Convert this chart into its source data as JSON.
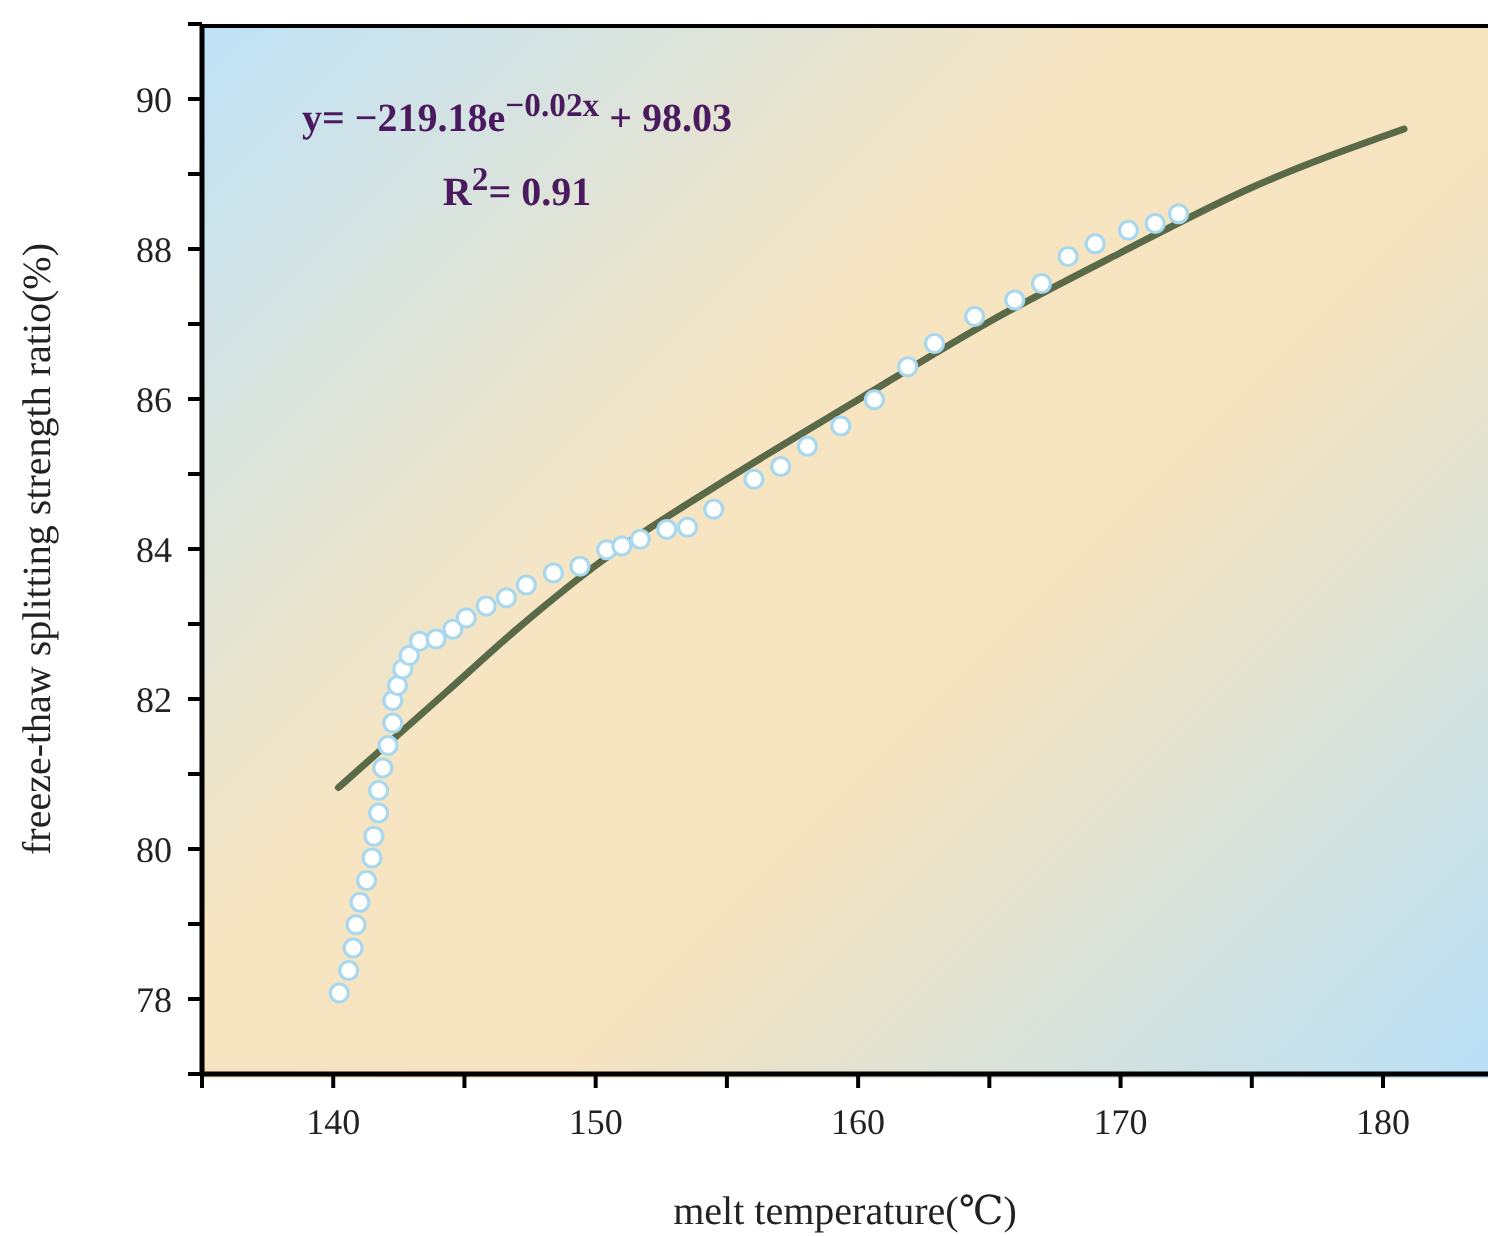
{
  "chart_data": {
    "type": "scatter",
    "xlabel": "melt temperature(℃)",
    "ylabel": "freeze-thaw splitting strength ratio(%)",
    "annotations": [
      "y= −219.18e$^{−0.02x}$ + 98.03",
      "R$^{2}$= 0.91"
    ],
    "xlim": [
      135,
      184
    ],
    "xticks": [
      {
        "value": 135,
        "label": null
      },
      140,
      {
        "value": 145,
        "label": null
      },
      150,
      {
        "value": 155,
        "label": null
      },
      160,
      {
        "value": 165,
        "label": null
      },
      170,
      {
        "value": 175,
        "label": null
      },
      180
    ],
    "ylim": [
      77,
      91
    ],
    "yticks": [
      {
        "value": 77,
        "label": null
      },
      78,
      {
        "value": 79,
        "label": null
      },
      80,
      {
        "value": 81,
        "label": null
      },
      82,
      {
        "value": 83,
        "label": null
      },
      84,
      {
        "value": 85,
        "label": null
      },
      86,
      {
        "value": 87,
        "label": null
      },
      88,
      {
        "value": 89,
        "label": null
      },
      90,
      {
        "value": 91,
        "label": null
      }
    ],
    "grid": false,
    "series": [
      {
        "color": "#a8d8f0",
        "marker": "circle",
        "x": [
          140.23,
          140.59,
          140.76,
          140.87,
          141.02,
          141.27,
          141.48,
          141.55,
          141.73,
          141.73,
          141.89,
          142.09,
          142.27,
          142.27,
          142.45,
          142.65,
          142.9,
          143.29,
          143.92,
          144.56,
          145.07,
          145.83,
          146.6,
          147.36,
          148.39,
          149.4,
          150.42,
          151.0,
          151.7,
          152.71,
          153.5,
          154.5,
          156.03,
          157.05,
          158.07,
          159.34,
          160.62,
          161.89,
          162.91,
          164.44,
          165.97,
          166.99,
          168.0,
          169.03,
          170.3,
          171.32,
          172.21
        ],
        "values": [
          78.08,
          78.38,
          78.68,
          78.99,
          79.29,
          79.58,
          79.88,
          80.17,
          80.48,
          80.78,
          81.08,
          81.38,
          81.68,
          81.98,
          82.18,
          82.4,
          82.58,
          82.77,
          82.8,
          82.93,
          83.08,
          83.24,
          83.35,
          83.52,
          83.68,
          83.77,
          83.99,
          84.04,
          84.13,
          84.26,
          84.29,
          84.53,
          84.93,
          85.1,
          85.37,
          85.64,
          85.99,
          86.43,
          86.74,
          87.1,
          87.32,
          87.54,
          87.9,
          88.07,
          88.25,
          88.34,
          88.47
        ]
      },
      {
        "type": "line",
        "color": "#5a6a48",
        "marker": "none",
        "line_style": "solid",
        "x": [
          140.2,
          144.3,
          146.86,
          150,
          155,
          160,
          165,
          170,
          175,
          180.8
        ],
        "values": [
          80.82,
          82.09,
          82.89,
          83.78,
          84.93,
          85.99,
          87.03,
          87.95,
          88.82,
          89.6
        ]
      }
    ]
  }
}
